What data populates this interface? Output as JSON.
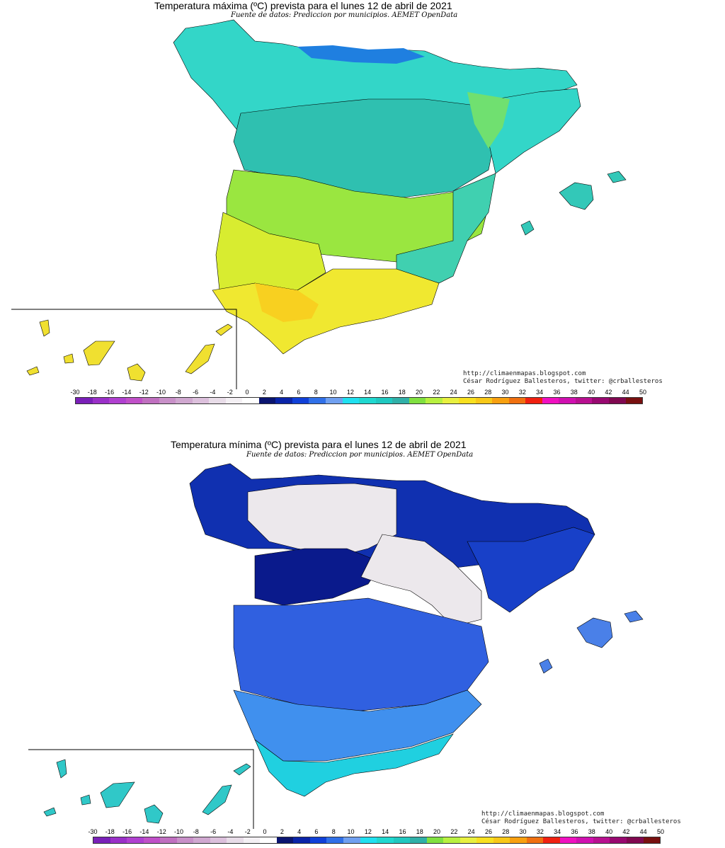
{
  "maps": [
    {
      "id": "max",
      "title": "Temperatura máxima (ºC) prevista para el lunes 12 de abril de 2021",
      "subtitle": "Fuente de datos: Prediccion por municipios. AEMET OpenData",
      "credit_url": "http://climaenmapas.blogspot.com",
      "credit_author": "César Rodríguez Ballesteros, twitter: @crballesteros",
      "regions": [
        {
          "name": "north-coast",
          "color": "#33d6c8"
        },
        {
          "name": "cantabrian-range",
          "color": "#1f7fe0"
        },
        {
          "name": "northern-plateau",
          "color": "#2fc0b0"
        },
        {
          "name": "ebro-valley",
          "color": "#70e070"
        },
        {
          "name": "catalonia",
          "color": "#33d6c8"
        },
        {
          "name": "central",
          "color": "#9ae640"
        },
        {
          "name": "extremadura",
          "color": "#d8ec30"
        },
        {
          "name": "andalusia",
          "color": "#f0e830"
        },
        {
          "name": "guadalquivir",
          "color": "#f8d020"
        },
        {
          "name": "levante",
          "color": "#40d0b0"
        },
        {
          "name": "balearics",
          "color": "#33c8b8"
        },
        {
          "name": "canaries",
          "color": "#f0e030"
        }
      ]
    },
    {
      "id": "min",
      "title": "Temperatura mínima (ºC) prevista para el lunes 12 de abril de 2021",
      "subtitle": "Fuente de datos: Prediccion por municipios. AEMET OpenData",
      "credit_url": "http://climaenmapas.blogspot.com",
      "credit_author": "César Rodríguez Ballesteros, twitter: @crballesteros",
      "regions": [
        {
          "name": "north-coast",
          "color": "#1030b0"
        },
        {
          "name": "northern-plateau",
          "color": "#ece8ec"
        },
        {
          "name": "central-north",
          "color": "#0a1a8c"
        },
        {
          "name": "iberian-system",
          "color": "#ece8ec"
        },
        {
          "name": "catalonia",
          "color": "#1840c8"
        },
        {
          "name": "central",
          "color": "#3060e0"
        },
        {
          "name": "south",
          "color": "#4090ee"
        },
        {
          "name": "coast-south",
          "color": "#20d0e0"
        },
        {
          "name": "balearics",
          "color": "#4a80e8"
        },
        {
          "name": "canaries",
          "color": "#30c8c8"
        }
      ]
    }
  ],
  "scale": {
    "labels": [
      "-30",
      "-18",
      "-16",
      "-14",
      "-12",
      "-10",
      "-8",
      "-6",
      "-4",
      "-2",
      "0",
      "2",
      "4",
      "6",
      "8",
      "10",
      "12",
      "14",
      "16",
      "18",
      "20",
      "22",
      "24",
      "26",
      "28",
      "30",
      "32",
      "34",
      "36",
      "38",
      "40",
      "42",
      "44",
      "50"
    ],
    "colors": [
      "#7a20b8",
      "#9a30c8",
      "#b040d0",
      "#c050c8",
      "#c070c0",
      "#c890c8",
      "#d0a8d0",
      "#dcc0dc",
      "#e8dce8",
      "#f4f0f4",
      "#ffffff",
      "#0a1470",
      "#0a24a8",
      "#1040d8",
      "#3070e8",
      "#70a0f0",
      "#20e0f0",
      "#20d8d0",
      "#20c8c0",
      "#30b0a8",
      "#80e040",
      "#b8f040",
      "#e8f040",
      "#f8e020",
      "#f8c818",
      "#f8a010",
      "#f07010",
      "#f02010",
      "#f010c0",
      "#d010b0",
      "#b81090",
      "#980870",
      "#800850",
      "#781010"
    ]
  }
}
